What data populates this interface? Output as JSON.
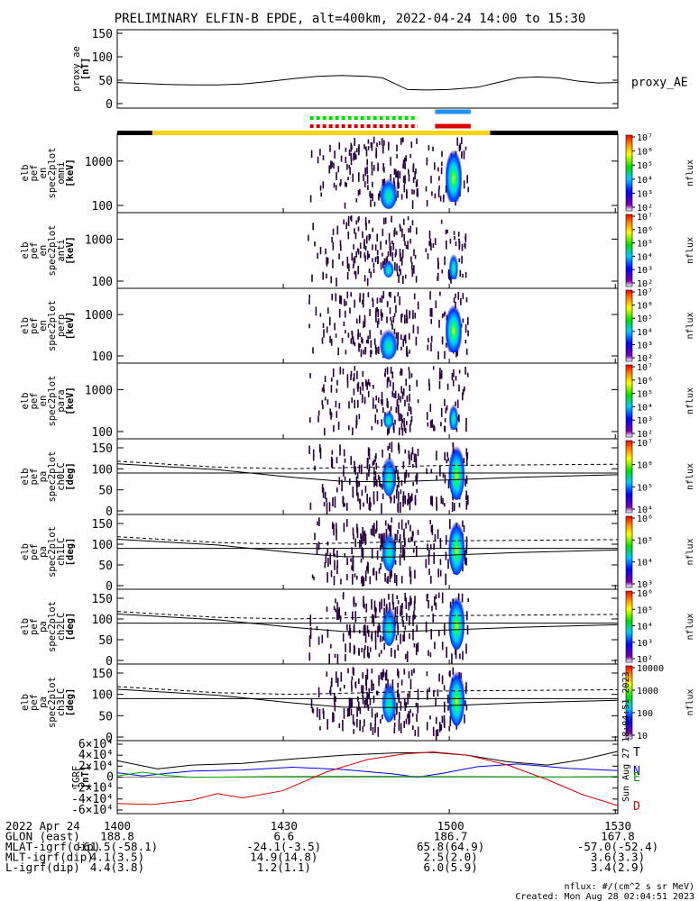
{
  "title": "PRELIMINARY ELFIN-B EPDE, alt=400km, 2022-04-24 14:00 to 15:30",
  "chart_data": {
    "type": "heatmap",
    "title": "PRELIMINARY ELFIN-B EPDE, alt=400km, 2022-04-24 14:00 to 15:30",
    "x_ticks": [
      "1400",
      "1430",
      "1500",
      "1530"
    ],
    "panels": [
      {
        "name": "proxy_ae",
        "type": "line",
        "ylabel": [
          "proxy_ae",
          "[nT]"
        ],
        "ylim": [
          0,
          150
        ],
        "yticks": [
          "0",
          "50",
          "100",
          "150"
        ],
        "series_label": "proxy_AE",
        "values": [
          [
            0,
            45
          ],
          [
            0.05,
            43
          ],
          [
            0.1,
            41
          ],
          [
            0.15,
            40
          ],
          [
            0.2,
            40
          ],
          [
            0.25,
            42
          ],
          [
            0.3,
            47
          ],
          [
            0.35,
            53
          ],
          [
            0.4,
            58
          ],
          [
            0.45,
            60
          ],
          [
            0.5,
            58
          ],
          [
            0.53,
            55
          ],
          [
            0.56,
            40
          ],
          [
            0.58,
            30
          ],
          [
            0.62,
            29
          ],
          [
            0.66,
            30
          ],
          [
            0.7,
            33
          ],
          [
            0.72,
            35
          ],
          [
            0.76,
            45
          ],
          [
            0.8,
            55
          ],
          [
            0.84,
            57
          ],
          [
            0.88,
            55
          ],
          [
            0.92,
            48
          ],
          [
            0.96,
            44
          ],
          [
            1,
            45
          ]
        ]
      },
      {
        "name": "spec_omni",
        "type": "spectrogram",
        "ylabel": [
          "elb",
          "pef",
          "en",
          "spec2plot",
          "omni",
          "[keV]"
        ],
        "yticks": [
          "100",
          "1000"
        ],
        "scale": "log",
        "colorbar_label": "nflux",
        "colorbar_ticks": [
          "10²",
          "10³",
          "10⁴",
          "10⁵",
          "10⁶",
          "10⁷"
        ]
      },
      {
        "name": "spec_anti",
        "type": "spectrogram",
        "ylabel": [
          "elb",
          "pef",
          "en",
          "spec2plot",
          "anti",
          "[keV]"
        ],
        "yticks": [
          "100",
          "1000"
        ],
        "scale": "log",
        "colorbar_label": "nflux",
        "colorbar_ticks": [
          "10²",
          "10³",
          "10⁴",
          "10⁵",
          "10⁶",
          "10⁷"
        ]
      },
      {
        "name": "spec_perp",
        "type": "spectrogram",
        "ylabel": [
          "elb",
          "pef",
          "en",
          "spec2plot",
          "perp",
          "[keV]"
        ],
        "yticks": [
          "100",
          "1000"
        ],
        "scale": "log",
        "colorbar_label": "nflux",
        "colorbar_ticks": [
          "10²",
          "10³",
          "10⁴",
          "10⁵",
          "10⁶",
          "10⁷"
        ]
      },
      {
        "name": "spec_para",
        "type": "spectrogram",
        "ylabel": [
          "elb",
          "pef",
          "en",
          "spec2plot",
          "para",
          "[keV]"
        ],
        "yticks": [
          "100",
          "1000"
        ],
        "scale": "log",
        "colorbar_label": "nflux",
        "colorbar_ticks": [
          "10²",
          "10³",
          "10⁴",
          "10⁵",
          "10⁶",
          "10⁷"
        ]
      },
      {
        "name": "pa_ch0",
        "type": "spectrogram",
        "ylabel": [
          "elb",
          "pef",
          "pa",
          "spec2plot",
          "ch0LC",
          "[deg]"
        ],
        "yticks": [
          "0",
          "50",
          "100",
          "150"
        ],
        "colorbar_label": "nflux",
        "colorbar_ticks": [
          "10⁴",
          "10⁵",
          "10⁶",
          "10⁷"
        ]
      },
      {
        "name": "pa_ch1",
        "type": "spectrogram",
        "ylabel": [
          "elb",
          "pef",
          "pa",
          "spec2plot",
          "ch1LC",
          "[deg]"
        ],
        "yticks": [
          "0",
          "50",
          "100",
          "150"
        ],
        "colorbar_label": "nflux",
        "colorbar_ticks": [
          "10³",
          "10⁴",
          "10⁵",
          "10⁶"
        ]
      },
      {
        "name": "pa_ch2",
        "type": "spectrogram",
        "ylabel": [
          "elb",
          "pef",
          "pa",
          "spec2plot",
          "ch2LC",
          "[deg]"
        ],
        "yticks": [
          "0",
          "50",
          "100",
          "150"
        ],
        "colorbar_label": "nflux",
        "colorbar_ticks": [
          "10²",
          "10³",
          "10⁴",
          "10⁵",
          "10⁶"
        ]
      },
      {
        "name": "pa_ch3",
        "type": "spectrogram",
        "ylabel": [
          "elb",
          "pef",
          "pa",
          "spec2plot",
          "ch3LC",
          "[deg]"
        ],
        "yticks": [
          "0",
          "50",
          "100",
          "150"
        ],
        "colorbar_label": "nflux",
        "colorbar_ticks": [
          "10",
          "100",
          "1000",
          "10000"
        ]
      },
      {
        "name": "igrf",
        "type": "line",
        "ylabel": [
          "IGRF",
          "[nT]"
        ],
        "ylim": [
          -60000,
          60000
        ],
        "yticks": [
          "-6×10⁴",
          "-4×10⁴",
          "-2×10⁴",
          "0",
          "2×10⁴",
          "4×10⁴",
          "6×10⁴"
        ],
        "series": [
          {
            "name": "T",
            "color": "#000000",
            "values": [
              [
                0,
                30000
              ],
              [
                0.08,
                15000
              ],
              [
                0.15,
                22000
              ],
              [
                0.25,
                25000
              ],
              [
                0.35,
                33000
              ],
              [
                0.45,
                40000
              ],
              [
                0.55,
                44000
              ],
              [
                0.63,
                45000
              ],
              [
                0.7,
                40000
              ],
              [
                0.78,
                28000
              ],
              [
                0.86,
                22000
              ],
              [
                0.93,
                32000
              ],
              [
                1,
                47000
              ]
            ]
          },
          {
            "name": "N",
            "color": "#0000ff",
            "values": [
              [
                0,
                8000
              ],
              [
                0.05,
                2000
              ],
              [
                0.1,
                7000
              ],
              [
                0.15,
                11000
              ],
              [
                0.25,
                13000
              ],
              [
                0.35,
                18000
              ],
              [
                0.45,
                14000
              ],
              [
                0.55,
                6000
              ],
              [
                0.6,
                0
              ],
              [
                0.65,
                7000
              ],
              [
                0.72,
                19000
              ],
              [
                0.8,
                24000
              ],
              [
                0.9,
                16000
              ],
              [
                1,
                12000
              ]
            ]
          },
          {
            "name": "E",
            "color": "#00aa00",
            "values": [
              [
                0,
                2000
              ],
              [
                0.05,
                9000
              ],
              [
                0.1,
                3000
              ],
              [
                0.15,
                -500
              ],
              [
                0.3,
                1000
              ],
              [
                0.5,
                1500
              ],
              [
                0.7,
                1000
              ],
              [
                0.9,
                500
              ],
              [
                1,
                1000
              ]
            ]
          },
          {
            "name": "D",
            "color": "#dd0000",
            "values": [
              [
                0,
                -48000
              ],
              [
                0.07,
                -50000
              ],
              [
                0.15,
                -42000
              ],
              [
                0.2,
                -30000
              ],
              [
                0.25,
                -38000
              ],
              [
                0.33,
                -25000
              ],
              [
                0.42,
                10000
              ],
              [
                0.5,
                32000
              ],
              [
                0.57,
                42000
              ],
              [
                0.63,
                46000
              ],
              [
                0.7,
                40000
              ],
              [
                0.78,
                22000
              ],
              [
                0.86,
                -5000
              ],
              [
                0.93,
                -32000
              ],
              [
                1,
                -52000
              ]
            ]
          }
        ]
      }
    ]
  },
  "footer": {
    "rows": [
      {
        "label": "2022 Apr 24",
        "values": [
          "1400",
          "1430",
          "1500",
          "1530"
        ]
      },
      {
        "label": "GLON (east)",
        "values": [
          "188.8",
          "6.6",
          "186.7",
          "167.8"
        ]
      },
      {
        "label": "MLAT-igrf(dip)",
        "values": [
          "-61.5(-58.1)",
          "-24.1(-3.5)",
          "65.8(64.9)",
          "-57.0(-52.4)"
        ]
      },
      {
        "label": "MLT-igrf(dip)",
        "values": [
          "4.1(3.5)",
          "14.9(14.8)",
          "2.5(2.0)",
          "3.6(3.3)"
        ]
      },
      {
        "label": "L-igrf(dip)",
        "values": [
          "4.4(3.8)",
          "1.2(1.1)",
          "6.0(5.9)",
          "3.4(2.9)"
        ]
      }
    ],
    "units_note": "nflux: #/(cm^2 s sr MeV)",
    "created": "Created: Mon Aug 28 02:04:51 2023",
    "side_stamp": "Sun Aug 27 18:04:51 2023"
  },
  "colors": {
    "orbit_bar_day": "#ffd400",
    "orbit_bar_night": "#000000",
    "science_zone_green": "#00dd00",
    "science_zone_red": "#dd0000",
    "marker_blue": "#1e90ff",
    "marker_red": "#dd0000"
  }
}
